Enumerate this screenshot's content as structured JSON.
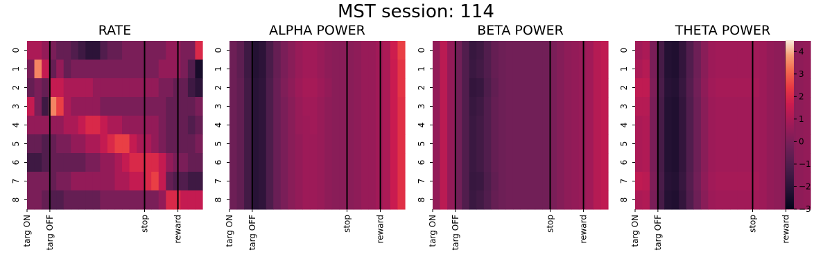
{
  "figure": {
    "title": "MST session: 114"
  },
  "chart_data": {
    "type": "heatmap",
    "row_labels": [
      "0",
      "1",
      "2",
      "3",
      "4",
      "5",
      "6",
      "7",
      "8"
    ],
    "x_ticks": [
      "targ ON",
      "targ OFF",
      "stop",
      "reward"
    ],
    "colorbar": {
      "min": -3,
      "max": 4.5,
      "ticks": [
        -3,
        -2,
        -1,
        0,
        1,
        2,
        3,
        4
      ],
      "tick_labels": [
        "−3",
        "−2",
        "−1",
        "0",
        "1",
        "2",
        "3",
        "4"
      ]
    },
    "panels": [
      {
        "title": "RATE",
        "values": [
          [
            1.0,
            1.0,
            0.5,
            0.0,
            -0.5,
            -0.5,
            -1.0,
            -1.5,
            -2.0,
            -2.0,
            -1.0,
            -0.5,
            -0.5,
            0.0,
            0.0,
            0.0,
            0.0,
            0.0,
            0.0,
            0.5,
            0.5,
            0.0,
            0.0,
            2.0
          ],
          [
            0.0,
            3.5,
            1.5,
            -0.5,
            0.5,
            -0.5,
            0.0,
            0.0,
            0.0,
            0.0,
            0.0,
            0.0,
            0.0,
            0.0,
            0.0,
            0.0,
            0.0,
            0.0,
            0.5,
            0.5,
            0.5,
            0.0,
            -1.0,
            -2.5
          ],
          [
            -0.5,
            0.0,
            -0.5,
            1.5,
            1.5,
            1.0,
            1.0,
            1.0,
            1.0,
            0.5,
            0.5,
            0.5,
            0.5,
            0.5,
            0.5,
            0.5,
            0.5,
            0.5,
            0.0,
            0.0,
            -0.5,
            -0.5,
            -1.5,
            -2.0
          ],
          [
            1.5,
            0.0,
            -1.5,
            3.5,
            2.5,
            1.0,
            0.5,
            0.5,
            0.5,
            0.5,
            0.0,
            0.0,
            0.0,
            0.0,
            0.0,
            0.0,
            0.0,
            0.0,
            0.0,
            -0.5,
            -0.5,
            -0.5,
            -0.5,
            0.0
          ],
          [
            0.5,
            0.5,
            0.5,
            0.5,
            0.5,
            1.0,
            1.0,
            1.5,
            2.0,
            2.0,
            1.5,
            1.0,
            1.0,
            0.5,
            0.5,
            0.5,
            0.5,
            0.5,
            0.0,
            -0.5,
            -0.5,
            -0.5,
            -1.0,
            -0.5
          ],
          [
            -0.5,
            -0.5,
            -1.0,
            -0.5,
            0.0,
            0.0,
            0.5,
            0.5,
            1.0,
            1.0,
            1.5,
            2.0,
            2.5,
            2.5,
            1.5,
            1.0,
            1.0,
            0.5,
            0.0,
            -0.5,
            -0.5,
            -0.5,
            -0.5,
            0.0
          ],
          [
            -1.5,
            -1.5,
            -1.0,
            -0.5,
            -0.5,
            -0.5,
            -0.5,
            -0.5,
            0.0,
            0.0,
            0.5,
            0.5,
            1.0,
            1.5,
            2.0,
            2.0,
            2.0,
            2.0,
            1.5,
            0.5,
            0.0,
            0.0,
            -0.5,
            -0.5
          ],
          [
            0.0,
            0.0,
            0.0,
            -0.5,
            0.0,
            0.0,
            0.5,
            0.5,
            0.5,
            0.5,
            0.5,
            0.5,
            1.0,
            1.0,
            1.5,
            1.5,
            2.0,
            2.5,
            1.5,
            -0.5,
            -1.0,
            -1.0,
            -1.5,
            -1.5
          ],
          [
            0.0,
            0.0,
            -0.5,
            -1.0,
            -1.0,
            -0.5,
            -0.5,
            -0.5,
            -0.5,
            -0.5,
            0.0,
            0.0,
            0.0,
            0.0,
            0.0,
            0.0,
            0.0,
            0.0,
            0.5,
            2.0,
            2.0,
            1.5,
            1.5,
            1.5
          ]
        ]
      },
      {
        "title": "ALPHA POWER",
        "values": [
          [
            -0.3,
            -0.7,
            -1.5,
            -2.2,
            -2.0,
            -1.2,
            -0.5,
            0.0,
            0.3,
            0.6,
            0.8,
            0.8,
            0.6,
            0.4,
            0.3,
            0.3,
            0.3,
            0.4,
            0.6,
            0.6,
            0.8,
            1.0,
            1.7,
            2.5
          ],
          [
            -0.3,
            -0.7,
            -1.5,
            -2.2,
            -2.0,
            -1.2,
            -0.5,
            0.0,
            0.3,
            0.6,
            0.8,
            0.8,
            0.6,
            0.4,
            0.3,
            0.3,
            0.3,
            0.4,
            0.6,
            0.6,
            0.8,
            1.0,
            1.6,
            2.3
          ],
          [
            -0.3,
            -0.6,
            -1.4,
            -2.1,
            -1.9,
            -1.1,
            -0.4,
            0.1,
            0.4,
            0.7,
            0.9,
            0.9,
            0.7,
            0.5,
            0.3,
            0.3,
            0.3,
            0.4,
            0.6,
            0.6,
            0.8,
            1.0,
            1.6,
            2.3
          ],
          [
            -0.3,
            -0.6,
            -1.4,
            -2.1,
            -1.9,
            -1.1,
            -0.4,
            0.0,
            0.3,
            0.6,
            0.8,
            0.8,
            0.6,
            0.4,
            0.3,
            0.3,
            0.3,
            0.4,
            0.6,
            0.6,
            0.8,
            1.0,
            1.6,
            2.2
          ],
          [
            -0.3,
            -0.6,
            -1.4,
            -2.1,
            -1.9,
            -1.1,
            -0.4,
            0.0,
            0.3,
            0.6,
            0.7,
            0.8,
            0.6,
            0.4,
            0.3,
            0.3,
            0.3,
            0.4,
            0.6,
            0.6,
            0.8,
            1.0,
            1.6,
            2.2
          ],
          [
            -0.3,
            -0.6,
            -1.4,
            -2.1,
            -1.9,
            -1.1,
            -0.4,
            0.0,
            0.3,
            0.5,
            0.7,
            0.7,
            0.6,
            0.4,
            0.3,
            0.3,
            0.3,
            0.4,
            0.6,
            0.6,
            0.8,
            1.0,
            1.6,
            2.2
          ],
          [
            -0.3,
            -0.6,
            -1.4,
            -2.1,
            -1.9,
            -1.1,
            -0.4,
            0.0,
            0.3,
            0.5,
            0.7,
            0.7,
            0.6,
            0.4,
            0.3,
            0.3,
            0.3,
            0.4,
            0.6,
            0.6,
            0.8,
            1.0,
            1.6,
            2.2
          ],
          [
            -0.3,
            -0.6,
            -1.4,
            -2.1,
            -1.9,
            -1.1,
            -0.4,
            0.0,
            0.3,
            0.5,
            0.7,
            0.7,
            0.6,
            0.4,
            0.3,
            0.3,
            0.3,
            0.4,
            0.6,
            0.6,
            0.8,
            1.0,
            1.6,
            2.2
          ],
          [
            -0.3,
            -0.6,
            -1.4,
            -2.1,
            -1.9,
            -1.1,
            -0.4,
            0.0,
            0.3,
            0.5,
            0.7,
            0.7,
            0.6,
            0.4,
            0.3,
            0.3,
            0.3,
            0.4,
            0.6,
            0.6,
            0.8,
            1.0,
            1.6,
            2.2
          ]
        ]
      },
      {
        "title": "BETA POWER",
        "values": [
          [
            0.5,
            1.3,
            0.5,
            -0.2,
            -1.0,
            -1.7,
            -1.5,
            -1.0,
            -0.5,
            -0.3,
            -0.2,
            -0.2,
            -0.2,
            -0.2,
            -0.2,
            -0.2,
            0.0,
            0.2,
            0.4,
            0.5,
            0.6,
            0.8,
            1.2,
            1.4
          ],
          [
            0.5,
            1.3,
            0.5,
            -0.2,
            -1.0,
            -1.6,
            -1.4,
            -1.0,
            -0.5,
            -0.3,
            -0.2,
            -0.2,
            -0.2,
            -0.2,
            -0.2,
            -0.2,
            0.0,
            0.2,
            0.4,
            0.5,
            0.6,
            0.8,
            1.2,
            1.4
          ],
          [
            0.5,
            1.3,
            0.5,
            -0.2,
            -1.0,
            -1.8,
            -1.7,
            -1.1,
            -0.6,
            -0.3,
            -0.2,
            -0.2,
            -0.2,
            -0.2,
            -0.2,
            -0.2,
            0.0,
            0.2,
            0.4,
            0.5,
            0.6,
            0.8,
            1.2,
            1.4
          ],
          [
            0.5,
            1.3,
            0.5,
            -0.2,
            -1.0,
            -1.7,
            -1.5,
            -1.0,
            -0.5,
            -0.3,
            -0.2,
            -0.2,
            -0.2,
            -0.2,
            -0.2,
            -0.2,
            0.0,
            0.2,
            0.4,
            0.5,
            0.6,
            0.8,
            1.2,
            1.4
          ],
          [
            0.5,
            1.3,
            0.5,
            -0.2,
            -1.0,
            -1.6,
            -1.4,
            -1.0,
            -0.5,
            -0.3,
            -0.2,
            -0.2,
            -0.2,
            -0.2,
            -0.2,
            -0.2,
            0.0,
            0.2,
            0.4,
            0.5,
            0.6,
            0.8,
            1.2,
            1.4
          ],
          [
            0.5,
            1.3,
            0.5,
            -0.2,
            -1.0,
            -1.6,
            -1.4,
            -1.0,
            -0.5,
            -0.3,
            -0.2,
            -0.2,
            -0.2,
            -0.2,
            -0.2,
            -0.2,
            0.0,
            0.2,
            0.4,
            0.5,
            0.6,
            0.8,
            1.2,
            1.4
          ],
          [
            0.5,
            1.3,
            0.5,
            -0.2,
            -1.0,
            -1.6,
            -1.4,
            -1.0,
            -0.5,
            -0.3,
            -0.2,
            -0.2,
            -0.2,
            -0.2,
            -0.2,
            -0.2,
            0.0,
            0.2,
            0.4,
            0.5,
            0.6,
            0.8,
            1.2,
            1.4
          ],
          [
            0.5,
            1.3,
            0.5,
            -0.2,
            -1.0,
            -1.7,
            -1.6,
            -1.1,
            -0.6,
            -0.3,
            -0.2,
            -0.2,
            -0.2,
            -0.2,
            -0.2,
            -0.2,
            0.0,
            0.2,
            0.4,
            0.5,
            0.6,
            0.8,
            1.2,
            1.4
          ],
          [
            0.5,
            1.3,
            0.5,
            -0.2,
            -1.0,
            -1.6,
            -1.4,
            -1.0,
            -0.5,
            -0.3,
            -0.2,
            -0.2,
            -0.2,
            -0.2,
            -0.2,
            -0.2,
            0.0,
            0.2,
            0.4,
            0.5,
            0.6,
            0.8,
            1.2,
            1.4
          ]
        ]
      },
      {
        "title": "THETA POWER",
        "values": [
          [
            0.8,
            1.0,
            0.0,
            -1.3,
            -2.2,
            -2.3,
            -1.8,
            -1.0,
            -0.3,
            0.3,
            0.7,
            0.8,
            0.8,
            0.8,
            0.8,
            0.8,
            0.8,
            0.7,
            0.5,
            0.4,
            0.3,
            0.3,
            0.4,
            0.5
          ],
          [
            1.0,
            1.2,
            0.0,
            -1.3,
            -2.2,
            -2.3,
            -1.8,
            -1.0,
            -0.3,
            0.3,
            0.7,
            0.8,
            0.8,
            0.8,
            0.8,
            0.8,
            0.8,
            0.7,
            0.5,
            0.4,
            0.3,
            0.3,
            0.4,
            0.5
          ],
          [
            1.4,
            1.4,
            0.1,
            -1.2,
            -2.1,
            -2.2,
            -1.7,
            -0.9,
            -0.2,
            0.4,
            0.8,
            0.9,
            0.9,
            0.9,
            0.9,
            0.9,
            0.9,
            0.7,
            0.5,
            0.4,
            0.3,
            0.3,
            0.4,
            0.5
          ],
          [
            1.2,
            1.2,
            0.0,
            -1.3,
            -2.2,
            -2.3,
            -1.8,
            -1.0,
            -0.3,
            0.3,
            0.7,
            0.8,
            0.8,
            0.8,
            0.8,
            0.8,
            0.8,
            0.7,
            0.5,
            0.4,
            0.3,
            0.3,
            0.4,
            0.5
          ],
          [
            1.0,
            1.1,
            0.0,
            -1.3,
            -2.2,
            -2.3,
            -1.8,
            -1.0,
            -0.3,
            0.3,
            0.7,
            0.8,
            0.8,
            0.8,
            0.8,
            0.8,
            0.8,
            0.7,
            0.5,
            0.4,
            0.3,
            0.3,
            0.4,
            0.5
          ],
          [
            1.0,
            1.1,
            0.0,
            -1.3,
            -2.2,
            -2.3,
            -1.8,
            -1.0,
            -0.3,
            0.3,
            0.7,
            0.8,
            0.8,
            0.8,
            0.8,
            0.8,
            0.8,
            0.7,
            0.5,
            0.4,
            0.3,
            0.3,
            0.4,
            0.5
          ],
          [
            1.0,
            1.1,
            0.0,
            -1.3,
            -2.2,
            -2.3,
            -1.8,
            -1.0,
            -0.3,
            0.3,
            0.7,
            0.8,
            0.8,
            0.8,
            0.8,
            0.8,
            0.8,
            0.7,
            0.5,
            0.4,
            0.3,
            0.3,
            0.4,
            0.5
          ],
          [
            1.4,
            1.3,
            0.1,
            -1.2,
            -2.1,
            -2.2,
            -1.7,
            -0.9,
            -0.2,
            0.4,
            0.8,
            0.9,
            0.9,
            0.9,
            0.9,
            0.9,
            0.9,
            0.7,
            0.5,
            0.4,
            0.3,
            0.3,
            0.4,
            0.5
          ],
          [
            1.0,
            1.1,
            0.0,
            -1.3,
            -2.2,
            -2.3,
            -1.8,
            -1.0,
            -0.3,
            0.3,
            0.7,
            0.8,
            0.8,
            0.8,
            0.8,
            0.8,
            0.8,
            0.7,
            0.5,
            0.4,
            0.3,
            0.3,
            0.4,
            0.5
          ]
        ]
      }
    ]
  }
}
